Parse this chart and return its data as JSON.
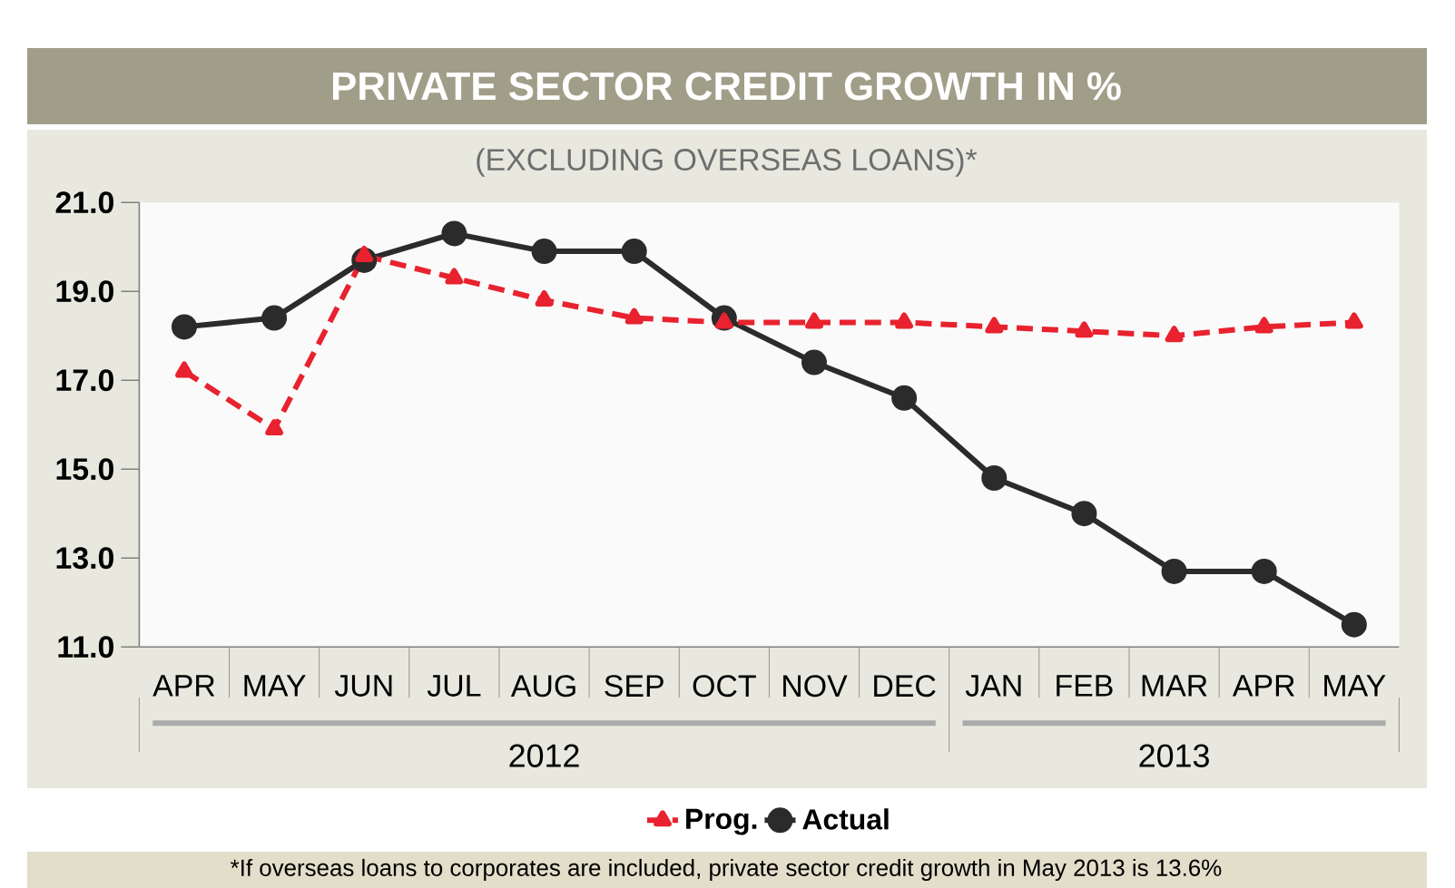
{
  "chart_data": {
    "type": "line",
    "title": "PRIVATE SECTOR CREDIT GROWTH IN %",
    "subtitle": "(EXCLUDING OVERSEAS LOANS)*",
    "categories": [
      "APR",
      "MAY",
      "JUN",
      "JUL",
      "AUG",
      "SEP",
      "OCT",
      "NOV",
      "DEC",
      "JAN",
      "FEB",
      "MAR",
      "APR",
      "MAY"
    ],
    "series": [
      {
        "name": "Prog.",
        "color": "#e8222e",
        "marker": "triangle",
        "line_style": "dashed",
        "values": [
          17.2,
          15.9,
          19.8,
          19.3,
          18.8,
          18.4,
          18.3,
          18.3,
          18.3,
          18.2,
          18.1,
          18.0,
          18.2,
          18.3
        ]
      },
      {
        "name": "Actual",
        "color": "#2b2b2b",
        "marker": "circle",
        "line_style": "solid",
        "values": [
          18.2,
          18.4,
          19.7,
          20.3,
          19.9,
          19.9,
          18.4,
          17.4,
          16.6,
          14.8,
          14.0,
          12.7,
          12.7,
          11.5
        ]
      }
    ],
    "ylim": [
      11,
      21
    ],
    "yticks": [
      {
        "value": 11,
        "label": "11.0"
      },
      {
        "value": 13,
        "label": "13.0"
      },
      {
        "value": 15,
        "label": "15.0"
      },
      {
        "value": 17,
        "label": "17.0"
      },
      {
        "value": 19,
        "label": "19.0"
      },
      {
        "value": 21,
        "label": "21.0"
      }
    ],
    "legend": "bottom",
    "annotations": [
      "2012",
      "2013",
      "*If overseas loans to corporates are included, private sector credit growth in May 2013 is 13.6%"
    ]
  }
}
